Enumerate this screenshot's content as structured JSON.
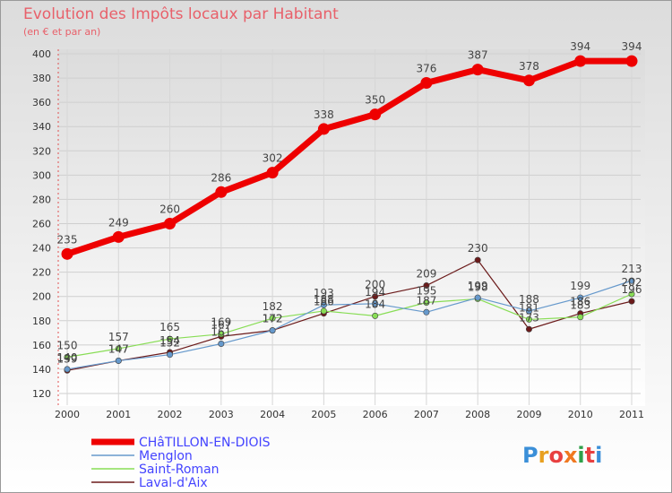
{
  "chart_data": {
    "type": "line",
    "title": "Evolution des Impôts locaux par Habitant",
    "subtitle": "(en € et par an)",
    "x": [
      "2000",
      "2001",
      "2002",
      "2003",
      "2004",
      "2005",
      "2006",
      "2007",
      "2008",
      "2009",
      "2010",
      "2011"
    ],
    "ylim": [
      120,
      400
    ],
    "yticks": [
      "120",
      "140",
      "160",
      "180",
      "200",
      "220",
      "240",
      "260",
      "280",
      "300",
      "320",
      "340",
      "360",
      "380",
      "400"
    ],
    "grid": true,
    "legend_position": "bottom-left",
    "series": [
      {
        "name": "CHâTILLON-EN-DIOIS",
        "color": "#ee0000",
        "values": [
          235,
          249,
          260,
          286,
          302,
          338,
          350,
          376,
          387,
          378,
          394,
          394
        ],
        "labels": [
          "235",
          "249",
          "260",
          "286",
          "302",
          "338",
          "350",
          "376",
          "387",
          "378",
          "394",
          "394"
        ]
      },
      {
        "name": "Menglon",
        "color": "#6699cc",
        "values": [
          140,
          147,
          152,
          161,
          172,
          193,
          194,
          187,
          199,
          188,
          199,
          213
        ],
        "labels": [
          "140",
          "147",
          "152",
          "161",
          "172",
          "193",
          "194",
          "187",
          "199",
          "188",
          "199",
          "213"
        ]
      },
      {
        "name": "Saint-Roman",
        "color": "#88dd55",
        "values": [
          150,
          157,
          165,
          169,
          182,
          188,
          184,
          195,
          198,
          181,
          183,
          202
        ],
        "labels": [
          "150",
          "157",
          "165",
          "169",
          "182",
          "188",
          "184",
          "195",
          "198",
          "181",
          "183",
          "202"
        ]
      },
      {
        "name": "Laval-d'Aix",
        "color": "#6b1a1a",
        "values": [
          139,
          147,
          154,
          167,
          172,
          186,
          200,
          209,
          230,
          173,
          186,
          196
        ],
        "labels": [
          "139",
          "147",
          "154",
          "167",
          "172",
          "186",
          "200",
          "209",
          "230",
          "173",
          "186",
          "196"
        ]
      }
    ]
  },
  "legend": {
    "colors": {
      "main_label": "#4444ff",
      "other_label": "#4444ff"
    }
  },
  "brand": {
    "logo_text": "Proxiti",
    "colors": [
      "#3b8fd8",
      "#e8a020",
      "#e84040",
      "#f07820",
      "#2fa04a",
      "#e84040",
      "#3b8fd8"
    ]
  }
}
